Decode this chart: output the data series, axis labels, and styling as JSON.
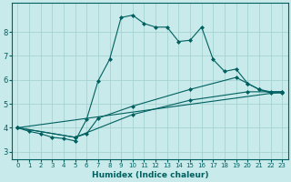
{
  "xlabel": "Humidex (Indice chaleur)",
  "xlim": [
    -0.5,
    23.5
  ],
  "ylim": [
    2.7,
    9.2
  ],
  "xticks": [
    0,
    1,
    2,
    3,
    4,
    5,
    6,
    7,
    8,
    9,
    10,
    11,
    12,
    13,
    14,
    15,
    16,
    17,
    18,
    19,
    20,
    21,
    22,
    23
  ],
  "yticks": [
    3,
    4,
    5,
    6,
    7,
    8
  ],
  "background_color": "#c8eaea",
  "grid_color": "#9ecece",
  "line_color": "#006060",
  "line1_x": [
    0,
    1,
    2,
    3,
    4,
    5,
    6,
    7,
    8,
    9,
    10,
    11,
    12,
    13,
    14,
    15,
    16,
    17,
    18,
    19,
    20,
    21,
    22,
    23
  ],
  "line1_y": [
    4.0,
    3.85,
    3.75,
    3.6,
    3.55,
    3.45,
    4.35,
    5.95,
    6.85,
    8.6,
    8.7,
    8.35,
    8.2,
    8.2,
    7.6,
    7.65,
    8.2,
    6.85,
    6.35,
    6.45,
    5.85,
    5.6,
    5.45,
    5.45
  ],
  "line2_x": [
    0,
    5,
    6,
    7,
    10,
    15,
    19,
    20,
    21,
    22,
    23
  ],
  "line2_y": [
    4.0,
    3.6,
    3.75,
    4.4,
    4.9,
    5.6,
    6.1,
    5.85,
    5.6,
    5.5,
    5.5
  ],
  "line3_x": [
    0,
    5,
    10,
    15,
    20,
    23
  ],
  "line3_y": [
    4.0,
    3.6,
    4.55,
    5.15,
    5.5,
    5.5
  ],
  "line4_x": [
    0,
    23
  ],
  "line4_y": [
    4.0,
    5.5
  ],
  "marker": "D",
  "marker_size": 2.0,
  "linewidth": 0.8
}
